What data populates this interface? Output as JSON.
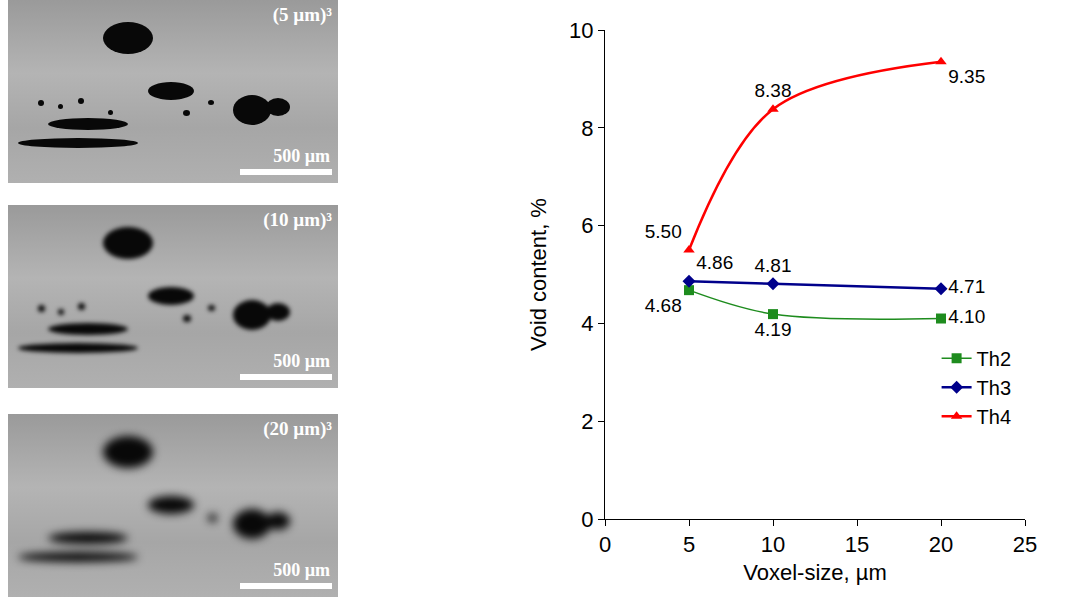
{
  "images": [
    {
      "label": "(5 µm)³",
      "scale_bar": "500 µm"
    },
    {
      "label": "(10 µm)³",
      "scale_bar": "500 µm"
    },
    {
      "label": "(20 µm)³",
      "scale_bar": "500 µm"
    }
  ],
  "chart_data": {
    "type": "line",
    "x_label": "Voxel-size, µm",
    "y_label": "Void content, %",
    "x": [
      5,
      10,
      20
    ],
    "xlim": [
      0,
      25
    ],
    "xticks": [
      0,
      5,
      10,
      15,
      20,
      25
    ],
    "ylim": [
      0,
      10
    ],
    "yticks": [
      0,
      2,
      4,
      6,
      8,
      10
    ],
    "grid": false,
    "legend": "lower right",
    "data_labels": true,
    "series": [
      {
        "name": "Th2",
        "color": "#1e8c1e",
        "marker": "square",
        "line_style": "spline",
        "values": [
          4.68,
          4.19,
          4.1
        ],
        "value_labels": [
          "4.68",
          "4.19",
          "4.10"
        ]
      },
      {
        "name": "Th3",
        "color": "#00008b",
        "marker": "diamond",
        "line_style": "spline",
        "values": [
          4.86,
          4.81,
          4.71
        ],
        "value_labels": [
          "4.86",
          "4.81",
          "4.71"
        ]
      },
      {
        "name": "Th4",
        "color": "#ff0000",
        "marker": "triangle-up",
        "line_style": "spline",
        "values": [
          5.5,
          8.38,
          9.35
        ],
        "value_labels": [
          "5.50",
          "8.38",
          "9.35"
        ]
      }
    ]
  }
}
